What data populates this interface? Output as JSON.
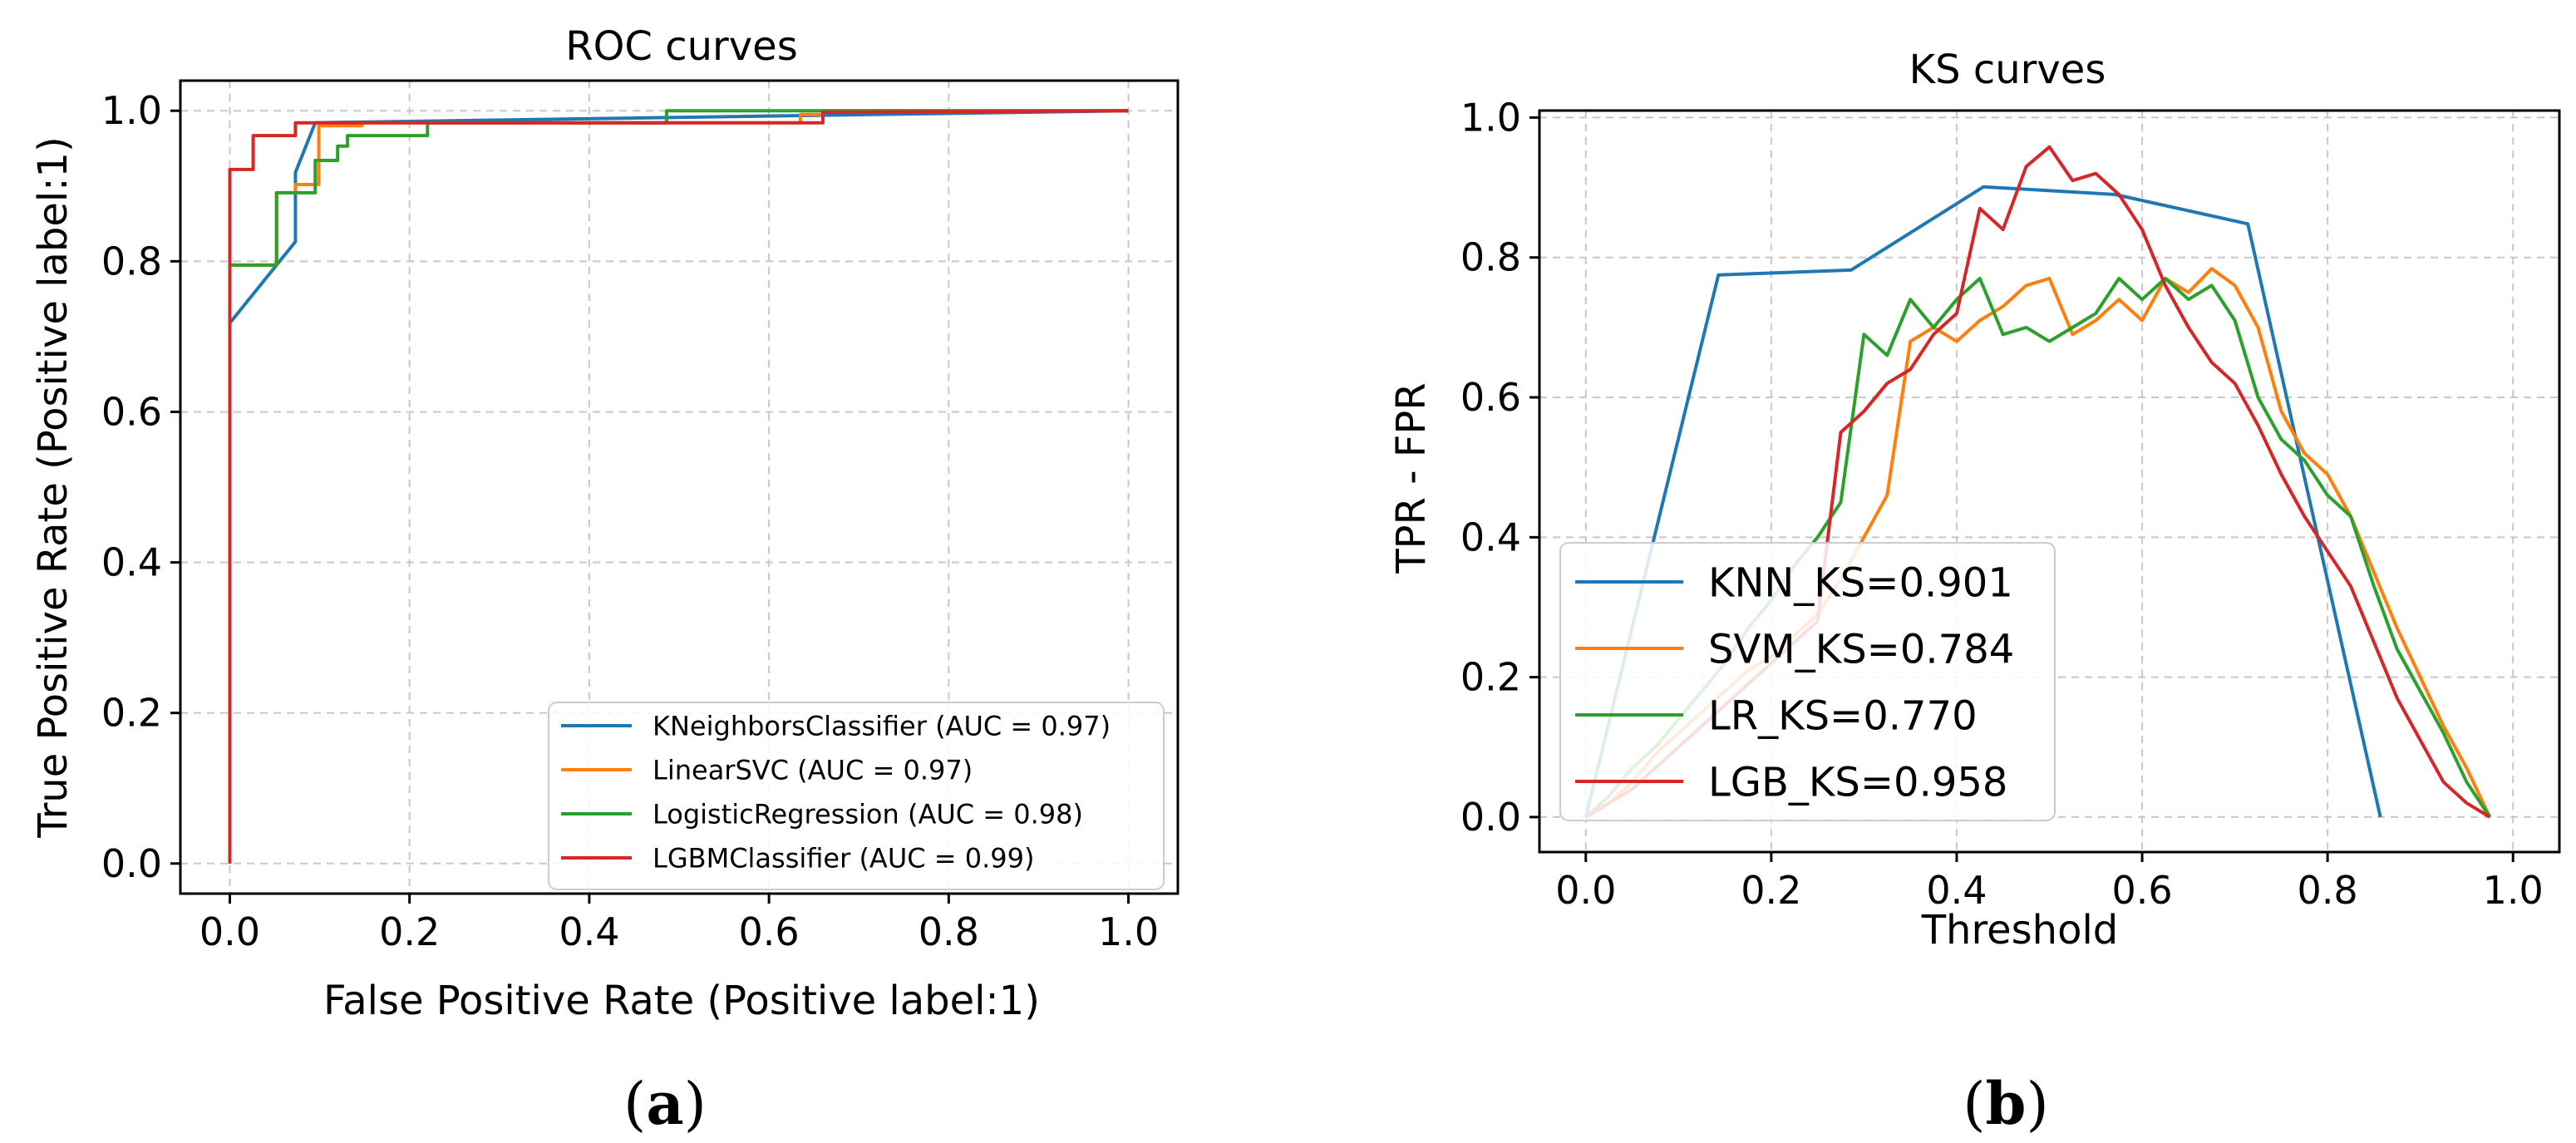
{
  "colors": {
    "knn": "#1f77b4",
    "svm": "#ff7f0e",
    "lr": "#2ca02c",
    "lgb": "#d62728",
    "grid": "#c8c8c8",
    "axis": "#000000"
  },
  "panels": {
    "a": {
      "label_open": "(",
      "label_letter": "a",
      "label_close": ")"
    },
    "b": {
      "label_open": "(",
      "label_letter": "b",
      "label_close": ")"
    }
  },
  "chart_data": [
    {
      "type": "line",
      "title": "ROC curves",
      "xlabel": "False Positive Rate (Positive label:1)",
      "ylabel": "True Positive Rate (Positive label:1)",
      "xlim": [
        -0.055,
        1.055
      ],
      "ylim": [
        -0.04,
        1.04
      ],
      "xticks": [
        0.0,
        0.2,
        0.4,
        0.6,
        0.8,
        1.0
      ],
      "yticks": [
        0.0,
        0.2,
        0.4,
        0.6,
        0.8,
        1.0
      ],
      "tick_labels": [
        "0.0",
        "0.2",
        "0.4",
        "0.6",
        "0.8",
        "1.0"
      ],
      "grid": true,
      "legend_position": "lower-right",
      "series": [
        {
          "key": "knn",
          "name": "KNeighborsClassifier (AUC = 0.97)",
          "x": [
            0,
            0,
            0.073,
            0.073,
            0.095,
            1.0
          ],
          "y": [
            0,
            0.718,
            0.826,
            0.918,
            0.984,
            1.0
          ]
        },
        {
          "key": "svm",
          "name": "LinearSVC (AUC = 0.97)",
          "x": [
            0,
            0,
            0.052,
            0.052,
            0.073,
            0.073,
            0.099,
            0.099,
            0.147,
            0.147,
            0.635,
            0.635,
            0.66,
            0.66,
            1.0
          ],
          "y": [
            0,
            0.795,
            0.795,
            0.891,
            0.891,
            0.902,
            0.902,
            0.98,
            0.98,
            0.984,
            0.984,
            0.995,
            0.995,
            1.0,
            1.0
          ]
        },
        {
          "key": "lr",
          "name": "LogisticRegression (AUC = 0.98)",
          "x": [
            0,
            0,
            0.052,
            0.052,
            0.095,
            0.095,
            0.12,
            0.12,
            0.131,
            0.131,
            0.22,
            0.22,
            0.486,
            0.486,
            1.0
          ],
          "y": [
            0,
            0.795,
            0.795,
            0.891,
            0.891,
            0.934,
            0.934,
            0.953,
            0.953,
            0.967,
            0.967,
            0.984,
            0.984,
            1.0,
            1.0
          ]
        },
        {
          "key": "lgb",
          "name": "LGBMClassifier (AUC = 0.99)",
          "x": [
            0,
            0,
            0.026,
            0.026,
            0.073,
            0.073,
            0.66,
            0.66,
            1.0
          ],
          "y": [
            0,
            0.922,
            0.922,
            0.967,
            0.967,
            0.984,
            0.984,
            0.998,
            1.0
          ]
        }
      ]
    },
    {
      "type": "line",
      "title": "KS curves",
      "xlabel": "Threshold",
      "ylabel": "TPR - FPR",
      "xlim": [
        -0.05,
        1.05
      ],
      "ylim": [
        -0.05,
        1.01
      ],
      "xticks": [
        0.0,
        0.2,
        0.4,
        0.6,
        0.8,
        1.0
      ],
      "yticks": [
        0.0,
        0.2,
        0.4,
        0.6,
        0.8,
        1.0
      ],
      "tick_labels": [
        "0.0",
        "0.2",
        "0.4",
        "0.6",
        "0.8",
        "1.0"
      ],
      "grid": true,
      "legend_position": "lower-left",
      "series": [
        {
          "key": "knn",
          "name": "KNN_KS=0.901",
          "x": [
            0,
            0.143,
            0.286,
            0.429,
            0.571,
            0.714,
            0.857
          ],
          "y": [
            0,
            0.775,
            0.782,
            0.901,
            0.89,
            0.848,
            0
          ]
        },
        {
          "key": "svm",
          "name": "SVM_KS=0.784",
          "x": [
            0,
            0.025,
            0.05,
            0.075,
            0.1,
            0.125,
            0.15,
            0.175,
            0.2,
            0.225,
            0.25,
            0.275,
            0.3,
            0.325,
            0.35,
            0.375,
            0.4,
            0.425,
            0.45,
            0.475,
            0.5,
            0.525,
            0.55,
            0.575,
            0.6,
            0.625,
            0.65,
            0.675,
            0.7,
            0.725,
            0.75,
            0.775,
            0.8,
            0.825,
            0.85,
            0.875,
            0.9,
            0.925,
            0.95,
            0.975
          ],
          "y": [
            0,
            0.02,
            0.05,
            0.09,
            0.12,
            0.15,
            0.18,
            0.21,
            0.23,
            0.26,
            0.29,
            0.34,
            0.4,
            0.46,
            0.68,
            0.7,
            0.68,
            0.71,
            0.73,
            0.76,
            0.77,
            0.69,
            0.71,
            0.74,
            0.71,
            0.77,
            0.75,
            0.784,
            0.76,
            0.7,
            0.58,
            0.52,
            0.49,
            0.43,
            0.35,
            0.27,
            0.2,
            0.13,
            0.07,
            0
          ]
        },
        {
          "key": "lr",
          "name": "LR_KS=0.770",
          "x": [
            0,
            0.025,
            0.05,
            0.075,
            0.1,
            0.125,
            0.15,
            0.175,
            0.2,
            0.225,
            0.25,
            0.275,
            0.3,
            0.325,
            0.35,
            0.375,
            0.4,
            0.425,
            0.45,
            0.475,
            0.5,
            0.525,
            0.55,
            0.575,
            0.6,
            0.625,
            0.65,
            0.675,
            0.7,
            0.725,
            0.75,
            0.775,
            0.8,
            0.825,
            0.85,
            0.875,
            0.9,
            0.925,
            0.95,
            0.975
          ],
          "y": [
            0,
            0.03,
            0.07,
            0.1,
            0.14,
            0.18,
            0.22,
            0.27,
            0.31,
            0.36,
            0.4,
            0.45,
            0.69,
            0.66,
            0.74,
            0.7,
            0.74,
            0.77,
            0.69,
            0.7,
            0.68,
            0.7,
            0.72,
            0.77,
            0.74,
            0.77,
            0.74,
            0.76,
            0.71,
            0.6,
            0.54,
            0.51,
            0.46,
            0.43,
            0.33,
            0.24,
            0.18,
            0.12,
            0.05,
            0
          ]
        },
        {
          "key": "lgb",
          "name": "LGB_KS=0.958",
          "x": [
            0,
            0.025,
            0.05,
            0.075,
            0.1,
            0.125,
            0.15,
            0.175,
            0.2,
            0.225,
            0.25,
            0.275,
            0.3,
            0.325,
            0.35,
            0.375,
            0.4,
            0.425,
            0.45,
            0.475,
            0.5,
            0.525,
            0.55,
            0.575,
            0.6,
            0.625,
            0.65,
            0.675,
            0.7,
            0.725,
            0.75,
            0.775,
            0.8,
            0.825,
            0.85,
            0.875,
            0.9,
            0.925,
            0.95,
            0.975
          ],
          "y": [
            0,
            0.02,
            0.04,
            0.07,
            0.1,
            0.13,
            0.16,
            0.19,
            0.22,
            0.25,
            0.28,
            0.55,
            0.58,
            0.62,
            0.64,
            0.69,
            0.72,
            0.87,
            0.84,
            0.93,
            0.958,
            0.91,
            0.92,
            0.89,
            0.84,
            0.76,
            0.7,
            0.65,
            0.62,
            0.56,
            0.49,
            0.43,
            0.38,
            0.33,
            0.25,
            0.17,
            0.11,
            0.05,
            0.02,
            0
          ]
        }
      ]
    }
  ]
}
